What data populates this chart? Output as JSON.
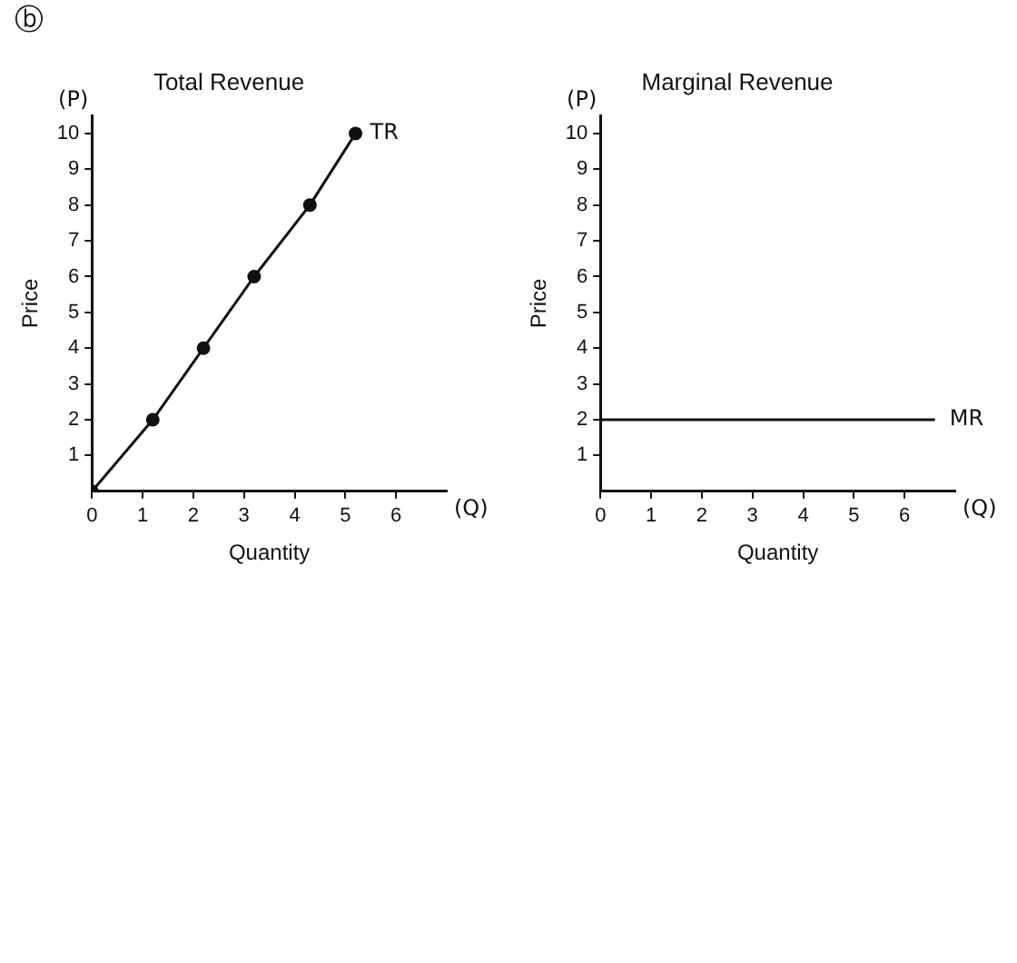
{
  "chart_data": [
    {
      "type": "line",
      "title": "Total Revenue",
      "xlabel": "Quantity",
      "ylabel": "Price",
      "x": [
        0,
        1.2,
        2.2,
        3.2,
        4.3,
        5.2
      ],
      "series": [
        {
          "name": "TR",
          "color": "#111111",
          "values": [
            0,
            2,
            4,
            6,
            8,
            10
          ]
        }
      ],
      "xlim": [
        0,
        7
      ],
      "ylim": [
        0,
        10.5
      ],
      "xticks": [
        0,
        1,
        2,
        3,
        4,
        5,
        6
      ],
      "yticks": [
        1,
        2,
        3,
        4,
        5,
        6,
        7,
        8,
        9,
        10
      ],
      "grid": false,
      "legend": false,
      "marker": "circle",
      "annotations": [
        "ⓑ",
        "(P)",
        "(Q)"
      ]
    },
    {
      "type": "line",
      "title": "Marginal Revenue",
      "xlabel": "Quantity",
      "ylabel": "Price",
      "x": [
        0,
        6.6
      ],
      "series": [
        {
          "name": "MR",
          "color": "#111111",
          "values": [
            2,
            2
          ]
        }
      ],
      "xlim": [
        0,
        7
      ],
      "ylim": [
        0,
        10.5
      ],
      "xticks": [
        0,
        1,
        2,
        3,
        4,
        5,
        6
      ],
      "yticks": [
        1,
        2,
        3,
        4,
        5,
        6,
        7,
        8,
        9,
        10
      ],
      "grid": false,
      "legend": false,
      "marker": "none",
      "annotations": [
        "(P)",
        "(Q)"
      ]
    }
  ]
}
